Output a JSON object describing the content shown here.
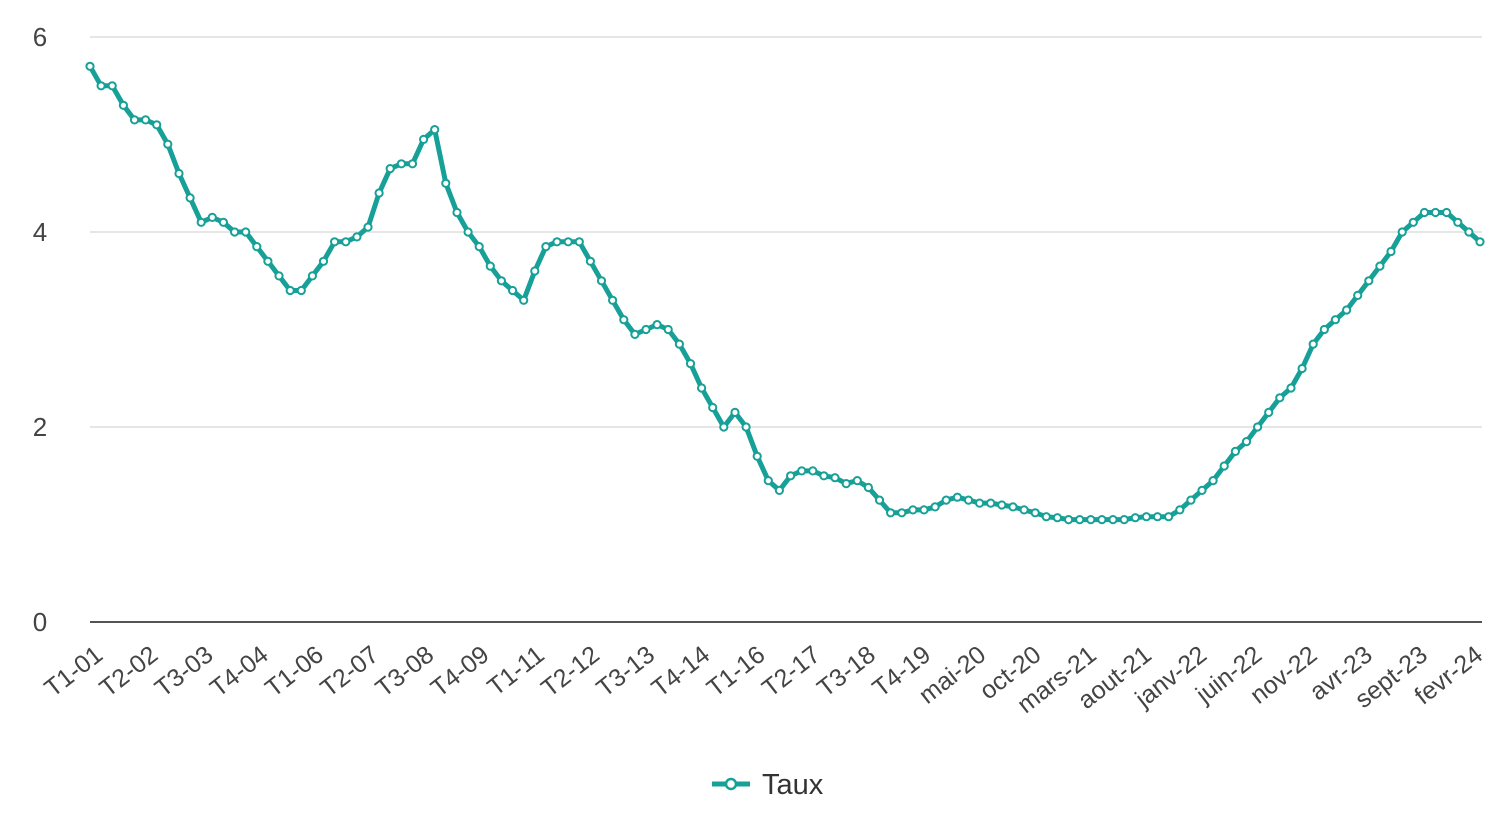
{
  "chart_data": {
    "type": "line",
    "title": "",
    "xlabel": "",
    "ylabel": "",
    "ylim": [
      0,
      6
    ],
    "yticks": [
      "0",
      "2",
      "4",
      "6"
    ],
    "grid": true,
    "legend_position": "bottom",
    "colors": {
      "series": "#16a097",
      "gridline": "#e6e6e6",
      "axis": "#555555",
      "marker_fill": "#ffffff"
    },
    "xtick_labels": [
      "T1-01",
      "T2-02",
      "T3-03",
      "T4-04",
      "T1-06",
      "T2-07",
      "T3-08",
      "T4-09",
      "T1-11",
      "T2-12",
      "T3-13",
      "T4-14",
      "T1-16",
      "T2-17",
      "T3-18",
      "T4-19",
      "mai-20",
      "oct-20",
      "mars-21",
      "aout-21",
      "janv-22",
      "juin-22",
      "nov-22",
      "avr-23",
      "sept-23",
      "fevr-24"
    ],
    "series": [
      {
        "name": "Taux",
        "values": [
          5.7,
          5.5,
          5.5,
          5.3,
          5.15,
          5.15,
          5.1,
          4.9,
          4.6,
          4.35,
          4.1,
          4.15,
          4.1,
          4.0,
          4.0,
          3.85,
          3.7,
          3.55,
          3.4,
          3.4,
          3.55,
          3.7,
          3.9,
          3.9,
          3.95,
          4.05,
          4.4,
          4.65,
          4.7,
          4.7,
          4.95,
          5.05,
          4.5,
          4.2,
          4.0,
          3.85,
          3.65,
          3.5,
          3.4,
          3.3,
          3.6,
          3.85,
          3.9,
          3.9,
          3.9,
          3.7,
          3.5,
          3.3,
          3.1,
          2.95,
          3.0,
          3.05,
          3.0,
          2.85,
          2.65,
          2.4,
          2.2,
          2.0,
          2.15,
          2.0,
          1.7,
          1.45,
          1.35,
          1.5,
          1.55,
          1.55,
          1.5,
          1.48,
          1.42,
          1.45,
          1.38,
          1.25,
          1.12,
          1.12,
          1.15,
          1.15,
          1.18,
          1.25,
          1.28,
          1.25,
          1.22,
          1.22,
          1.2,
          1.18,
          1.15,
          1.12,
          1.08,
          1.07,
          1.05,
          1.05,
          1.05,
          1.05,
          1.05,
          1.05,
          1.07,
          1.08,
          1.08,
          1.08,
          1.15,
          1.25,
          1.35,
          1.45,
          1.6,
          1.75,
          1.85,
          2.0,
          2.15,
          2.3,
          2.4,
          2.6,
          2.85,
          3.0,
          3.1,
          3.2,
          3.35,
          3.5,
          3.65,
          3.8,
          4.0,
          4.1,
          4.2,
          4.2,
          4.2,
          4.1,
          4.0,
          3.9
        ]
      }
    ]
  }
}
